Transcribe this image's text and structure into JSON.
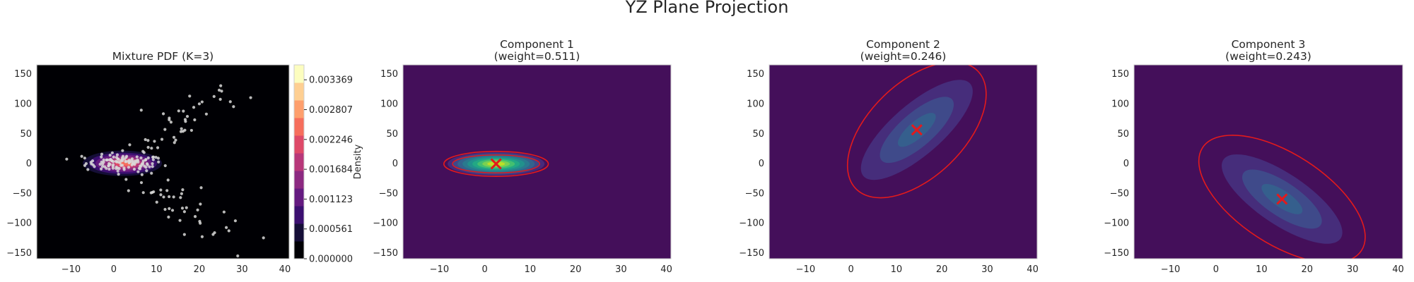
{
  "figure": {
    "suptitle": "YZ Plane Projection"
  },
  "colors": {
    "plot_background_component": "#440f5a",
    "plot_background_mixture": "#000004",
    "ellipse": "#e31a1c",
    "mean_marker": "#e31a1c",
    "scatter_points": "#d9d9d9",
    "axes_frame": "#cccccc"
  },
  "chart_data": [
    {
      "type": "heatmap",
      "title_lines": [
        "Mixture PDF (K=3)"
      ],
      "xlim": [
        -18,
        41
      ],
      "ylim": [
        -160,
        165
      ],
      "xticks": [
        -10,
        0,
        10,
        20,
        30,
        40
      ],
      "yticks": [
        -150,
        -100,
        -50,
        0,
        50,
        100,
        150
      ],
      "grid": false,
      "colorbar": {
        "label": "Density",
        "ticks": [
          "0.000000",
          "0.000561",
          "0.001123",
          "0.001684",
          "0.002246",
          "0.002807",
          "0.003369"
        ],
        "levels": 11,
        "max": 0.00365,
        "colors": [
          "#000004",
          "#150e37",
          "#3b0f70",
          "#641a80",
          "#8c2981",
          "#b73779",
          "#de4968",
          "#f66e5c",
          "#fe9f6d",
          "#fecf92",
          "#fcfdbf"
        ]
      },
      "density_peak": {
        "y": 3,
        "z": 0
      },
      "scatter_note": "approximate sample points"
    },
    {
      "type": "heatmap",
      "title_lines": [
        "Component 1",
        "(weight=0.511)"
      ],
      "weight": 0.511,
      "xlim": [
        -18,
        41
      ],
      "ylim": [
        -160,
        165
      ],
      "xticks": [
        -10,
        0,
        10,
        20,
        30,
        40
      ],
      "yticks": [
        -150,
        -100,
        -50,
        0,
        50,
        100,
        150
      ],
      "mean": {
        "y": 2.5,
        "z": -1
      },
      "ellipse": {
        "width": 23,
        "height": 44,
        "angle_deg": 0
      },
      "palette": [
        "#440f5a",
        "#472a7a",
        "#3f4889",
        "#33638d",
        "#297a8e",
        "#21918c",
        "#22a884",
        "#44bf70",
        "#7ad151",
        "#bddf26"
      ]
    },
    {
      "type": "heatmap",
      "title_lines": [
        "Component 2",
        "(weight=0.246)"
      ],
      "weight": 0.246,
      "xlim": [
        -18,
        41
      ],
      "ylim": [
        -160,
        165
      ],
      "xticks": [
        -10,
        0,
        10,
        20,
        30,
        40
      ],
      "yticks": [
        -150,
        -100,
        -50,
        0,
        50,
        100,
        150
      ],
      "mean": {
        "y": 14.5,
        "z": 56
      },
      "ellipse_points_note": "approximate 95% contour",
      "palette": [
        "#440f5a",
        "#462d7b",
        "#3f4a8a",
        "#355f8d"
      ]
    },
    {
      "type": "heatmap",
      "title_lines": [
        "Component 3",
        "(weight=0.243)"
      ],
      "weight": 0.243,
      "xlim": [
        -18,
        41
      ],
      "ylim": [
        -160,
        165
      ],
      "xticks": [
        -10,
        0,
        10,
        20,
        30,
        40
      ],
      "yticks": [
        -150,
        -100,
        -50,
        0,
        50,
        100,
        150
      ],
      "mean": {
        "y": 14.5,
        "z": -60
      },
      "palette": [
        "#440f5a",
        "#462d7b",
        "#3f4a8a",
        "#355f8d"
      ]
    }
  ]
}
